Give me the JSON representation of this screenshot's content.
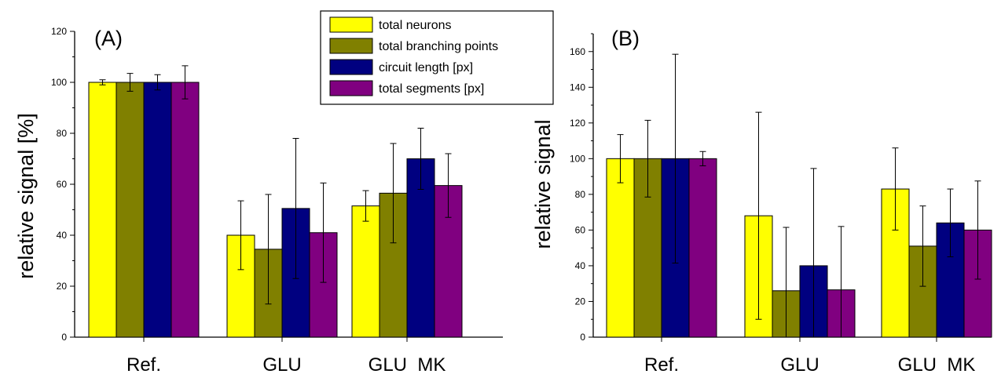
{
  "legend": {
    "entries": [
      {
        "label": "total neurons",
        "color": "#ffff00"
      },
      {
        "label": "total branching points",
        "color": "#808000"
      },
      {
        "label": "circuit length [px]",
        "color": "#000080"
      },
      {
        "label": "total segments [px]",
        "color": "#800080"
      }
    ]
  },
  "chart_data": [
    {
      "type": "bar",
      "panel_label": "(A)",
      "ylabel": "relative signal [%]",
      "ylim": [
        0,
        120
      ],
      "yticks": [
        0,
        20,
        40,
        60,
        80,
        100,
        120
      ],
      "categories": [
        "Ref.",
        "GLU",
        "GLU  MK"
      ],
      "series": [
        {
          "name": "total neurons",
          "color": "#ffff00",
          "values": [
            100,
            40,
            51.5
          ],
          "errors": [
            1,
            13.5,
            6
          ]
        },
        {
          "name": "total branching points",
          "color": "#808000",
          "values": [
            100,
            34.5,
            56.5
          ],
          "errors": [
            3.5,
            21.5,
            19.5
          ]
        },
        {
          "name": "circuit length [px]",
          "color": "#000080",
          "values": [
            100,
            50.5,
            70
          ],
          "errors": [
            3,
            27.5,
            12
          ]
        },
        {
          "name": "total segments [px]",
          "color": "#800080",
          "values": [
            100,
            41,
            59.5
          ],
          "errors": [
            6.5,
            19.5,
            12.5
          ]
        }
      ]
    },
    {
      "type": "bar",
      "panel_label": "(B)",
      "ylabel": "relative signal",
      "ylim": [
        0,
        170
      ],
      "yticks": [
        0,
        20,
        40,
        60,
        80,
        100,
        120,
        140,
        160
      ],
      "categories": [
        "Ref.",
        "GLU",
        "GLU  MK"
      ],
      "series": [
        {
          "name": "total neurons",
          "color": "#ffff00",
          "values": [
            100,
            68,
            83
          ],
          "errors": [
            13.5,
            58,
            23
          ]
        },
        {
          "name": "total branching points",
          "color": "#808000",
          "values": [
            100,
            26,
            51
          ],
          "errors": [
            21.5,
            35.5,
            22.5
          ]
        },
        {
          "name": "circuit length [px]",
          "color": "#000080",
          "values": [
            100,
            40,
            64
          ],
          "errors": [
            58.5,
            54.5,
            19
          ]
        },
        {
          "name": "total segments [px]",
          "color": "#800080",
          "values": [
            100,
            26.5,
            60
          ],
          "errors": [
            4,
            35.5,
            27.5
          ]
        }
      ]
    }
  ]
}
